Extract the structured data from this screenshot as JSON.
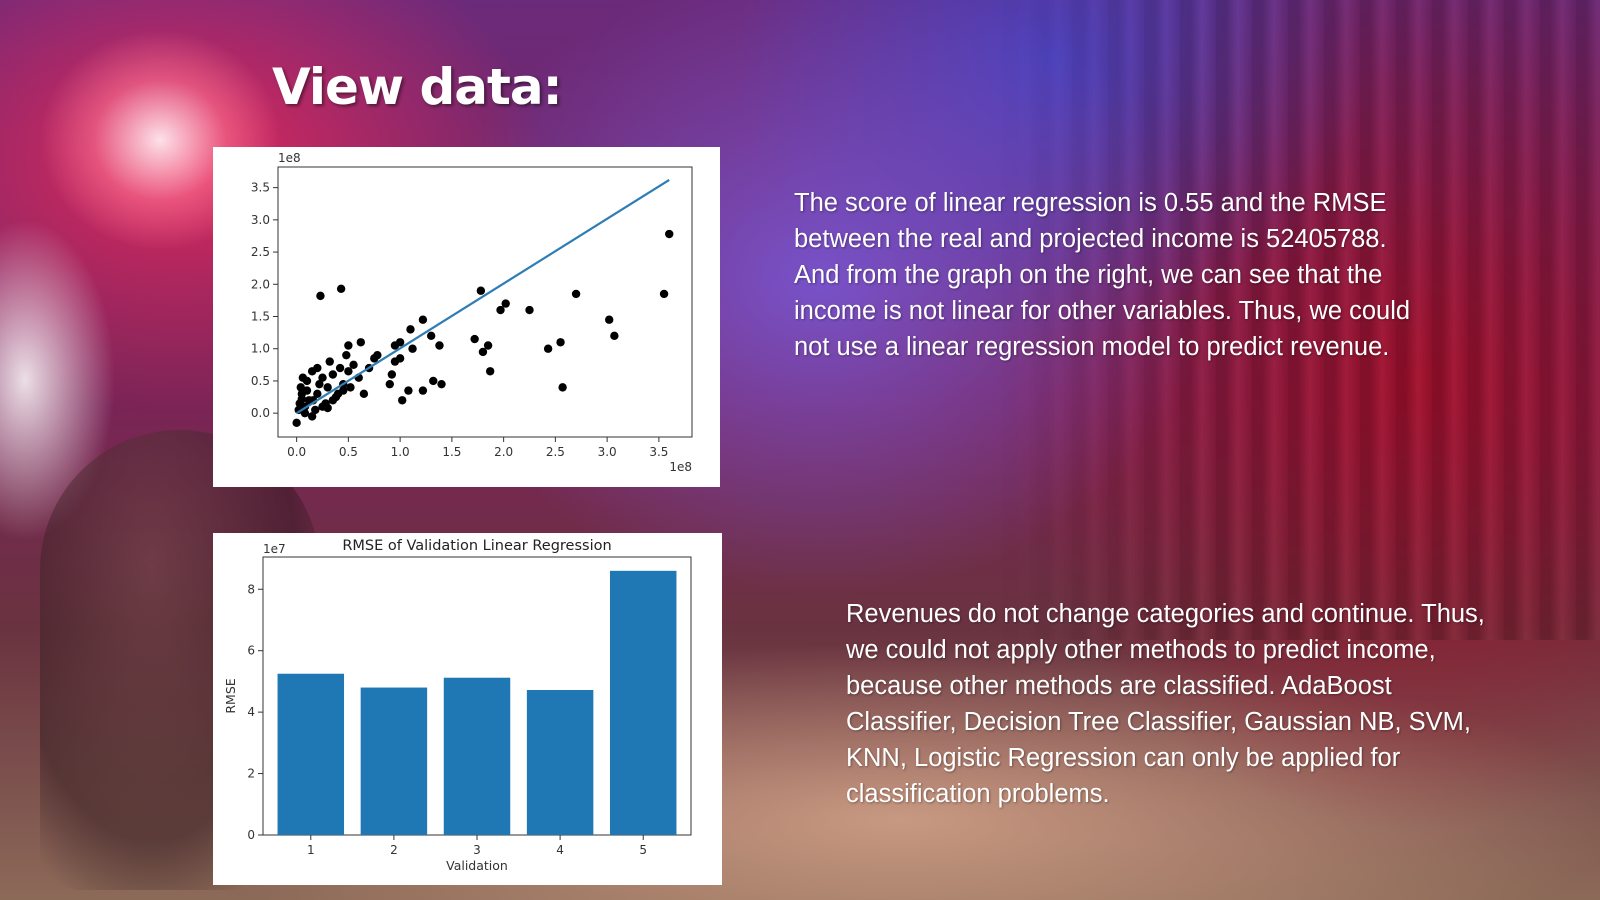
{
  "slide": {
    "title": "View data:",
    "paragraph_1": "The score of linear regression is 0.55 and the RMSE between the real and projected income is 52405788. And from the graph on the right, we can see that the income is not linear for other variables. Thus, we could not use a linear regression model to predict revenue.",
    "paragraph_2": "Revenues do not change categories and continue. Thus, we could not apply other methods to predict income, because other methods are classified. AdaBoost Classifier, Decision Tree Classifier, Gaussian NB, SVM, KNN, Logistic Regression can only be applied for classification problems."
  },
  "colors": {
    "scatter_points": "#000000",
    "fit_line": "#2e7db5",
    "bars": "#1f77b4",
    "text": "#ffffff"
  },
  "chart_data": [
    {
      "type": "scatter",
      "title": "",
      "xlabel": "",
      "ylabel": "",
      "x_offset_label": "1e8",
      "y_offset_label": "1e8",
      "xlim": [
        -0.18,
        3.82
      ],
      "ylim": [
        -0.37,
        3.82
      ],
      "xticks": [
        "0.0",
        "0.5",
        "1.0",
        "1.5",
        "2.0",
        "2.5",
        "3.0",
        "3.5"
      ],
      "yticks": [
        "0.0",
        "0.5",
        "1.0",
        "1.5",
        "2.0",
        "2.5",
        "3.0",
        "3.5"
      ],
      "grid": false,
      "points": [
        [
          0.0,
          -0.15
        ],
        [
          0.02,
          0.05
        ],
        [
          0.03,
          0.15
        ],
        [
          0.05,
          0.3
        ],
        [
          0.04,
          0.4
        ],
        [
          0.06,
          0.55
        ],
        [
          0.08,
          0.1
        ],
        [
          0.1,
          0.35
        ],
        [
          0.12,
          0.2
        ],
        [
          0.1,
          0.5
        ],
        [
          0.15,
          0.65
        ],
        [
          0.18,
          0.05
        ],
        [
          0.2,
          0.3
        ],
        [
          0.22,
          0.45
        ],
        [
          0.25,
          0.55
        ],
        [
          0.2,
          0.7
        ],
        [
          0.28,
          0.15
        ],
        [
          0.3,
          0.4
        ],
        [
          0.32,
          0.8
        ],
        [
          0.35,
          0.6
        ],
        [
          0.4,
          0.3
        ],
        [
          0.38,
          0.25
        ],
        [
          0.42,
          0.7
        ],
        [
          0.45,
          0.45
        ],
        [
          0.48,
          0.9
        ],
        [
          0.5,
          0.65
        ],
        [
          0.52,
          0.4
        ],
        [
          0.55,
          0.75
        ],
        [
          0.6,
          0.55
        ],
        [
          0.62,
          1.1
        ],
        [
          0.65,
          0.3
        ],
        [
          0.7,
          0.7
        ],
        [
          0.75,
          0.85
        ],
        [
          0.08,
          0.0
        ],
        [
          0.15,
          -0.05
        ],
        [
          0.25,
          0.1
        ],
        [
          0.35,
          0.2
        ],
        [
          0.45,
          0.35
        ],
        [
          0.5,
          1.05
        ],
        [
          0.78,
          0.9
        ],
        [
          0.9,
          0.45
        ],
        [
          0.92,
          0.6
        ],
        [
          0.95,
          0.8
        ],
        [
          0.95,
          1.05
        ],
        [
          1.0,
          0.85
        ],
        [
          1.0,
          1.1
        ],
        [
          1.02,
          0.2
        ],
        [
          1.08,
          0.35
        ],
        [
          1.1,
          1.3
        ],
        [
          1.12,
          1.0
        ],
        [
          1.22,
          0.35
        ],
        [
          1.22,
          1.45
        ],
        [
          1.3,
          1.2
        ],
        [
          1.32,
          0.5
        ],
        [
          1.38,
          1.05
        ],
        [
          1.4,
          0.45
        ],
        [
          1.72,
          1.15
        ],
        [
          1.8,
          0.95
        ],
        [
          1.78,
          1.9
        ],
        [
          1.85,
          1.05
        ],
        [
          1.87,
          0.65
        ],
        [
          1.97,
          1.6
        ],
        [
          2.02,
          1.7
        ],
        [
          2.25,
          1.6
        ],
        [
          2.43,
          1.0
        ],
        [
          2.55,
          1.1
        ],
        [
          2.57,
          0.4
        ],
        [
          2.7,
          1.85
        ],
        [
          3.02,
          1.45
        ],
        [
          3.07,
          1.2
        ],
        [
          3.55,
          1.85
        ],
        [
          3.6,
          2.78
        ],
        [
          0.23,
          1.82
        ],
        [
          0.43,
          1.93
        ],
        [
          0.16,
          0.2
        ],
        [
          0.3,
          0.08
        ],
        [
          0.05,
          0.22
        ]
      ],
      "fit_line": [
        [
          0.0,
          0.0
        ],
        [
          3.6,
          3.62
        ]
      ]
    },
    {
      "type": "bar",
      "title": "RMSE of Validation Linear Regression",
      "xlabel": "Validation",
      "ylabel": "RMSE",
      "y_offset_label": "1e7",
      "categories": [
        "1",
        "2",
        "3",
        "4",
        "5"
      ],
      "values": [
        5.25,
        4.8,
        5.12,
        4.72,
        8.6
      ],
      "ylim": [
        0,
        9.05
      ],
      "yticks": [
        "0",
        "2",
        "4",
        "6",
        "8"
      ],
      "grid": false
    }
  ]
}
